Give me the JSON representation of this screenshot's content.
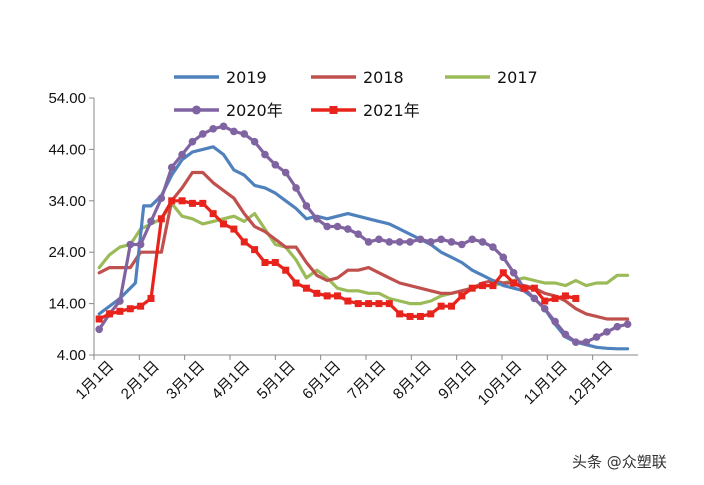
{
  "chart_data": {
    "type": "line",
    "title": "",
    "xlabel": "",
    "ylabel": "",
    "ylim": [
      4,
      54
    ],
    "y_ticks": [
      "54.00",
      "44.00",
      "34.00",
      "24.00",
      "14.00",
      "4.00"
    ],
    "y_tick_values": [
      54,
      44,
      34,
      24,
      14,
      4
    ],
    "x_ticks": [
      "1月1日",
      "2月1日",
      "3月1日",
      "4月1日",
      "5月1日",
      "6月1日",
      "7月1日",
      "8月1日",
      "9月1日",
      "10月1日",
      "11月1日",
      "12月1日"
    ],
    "xlim": [
      -0.5,
      52.0
    ],
    "grid": false,
    "legend_placement": "top",
    "series": [
      {
        "name": "2019",
        "color": "#4f81bd",
        "marker": "none",
        "x": [
          0,
          2,
          3.5,
          4.3,
          5,
          6,
          7,
          8,
          9,
          10,
          11,
          12,
          13,
          14,
          15,
          16,
          17,
          18,
          19,
          20,
          21,
          22,
          23,
          24,
          25,
          26,
          27,
          28,
          29,
          30,
          31,
          32,
          33,
          34,
          35,
          36,
          37,
          38,
          39,
          40,
          41,
          42,
          43,
          44,
          45,
          46,
          47,
          48,
          49,
          50,
          51
        ],
        "y": [
          12,
          15,
          18,
          33,
          33,
          35,
          39,
          42,
          43.5,
          44,
          44.5,
          43,
          40,
          39,
          37,
          36.5,
          35.5,
          34,
          32.5,
          30.5,
          31,
          30.5,
          31,
          31.5,
          31,
          30.5,
          30,
          29.5,
          28.5,
          27.5,
          26.5,
          25.5,
          24,
          23,
          22,
          20.5,
          19.5,
          18.5,
          17.5,
          17,
          16.5,
          15,
          13,
          10,
          7.5,
          6.5,
          6,
          5.5,
          5.3,
          5.2,
          5.2
        ]
      },
      {
        "name": "2018",
        "color": "#c0504d",
        "marker": "none",
        "x": [
          0,
          1,
          2,
          3,
          4,
          5,
          6,
          7,
          8,
          9,
          10,
          11,
          12,
          13,
          14,
          15,
          16,
          17,
          18,
          19,
          20,
          21,
          22,
          23,
          24,
          25,
          26,
          27,
          28,
          29,
          30,
          31,
          32,
          33,
          34,
          35,
          36,
          37,
          38,
          39,
          40,
          41,
          42,
          43,
          44,
          45,
          46,
          47,
          48,
          49,
          50,
          51
        ],
        "y": [
          20,
          21,
          21,
          21,
          24,
          24,
          24,
          34,
          36.5,
          39.5,
          39.5,
          37.5,
          36,
          34.5,
          31.5,
          29,
          28,
          26.5,
          25,
          25,
          22,
          19.5,
          18.5,
          19,
          20.5,
          20.5,
          21,
          20,
          19,
          18,
          17.5,
          17,
          16.5,
          16,
          16,
          16.5,
          17,
          18,
          18.5,
          18,
          18,
          17.5,
          17,
          16,
          15.5,
          14.5,
          13,
          12,
          11.5,
          11,
          11,
          11
        ]
      },
      {
        "name": "2017",
        "color": "#9bbb59",
        "marker": "none",
        "x": [
          0,
          1,
          2,
          3,
          4,
          5,
          6,
          7,
          8,
          9,
          10,
          11,
          12,
          13,
          14,
          15,
          16,
          17,
          18,
          19,
          20,
          21,
          22,
          23,
          24,
          25,
          26,
          27,
          28,
          29,
          30,
          31,
          32,
          33,
          34,
          35,
          36,
          37,
          38,
          39,
          40,
          41,
          42,
          43,
          44,
          45,
          46,
          47,
          48,
          49,
          50,
          51
        ],
        "y": [
          21,
          23.5,
          25,
          25.5,
          28.5,
          29.5,
          30.5,
          33.5,
          31,
          30.5,
          29.5,
          30,
          30.5,
          31,
          30,
          31.5,
          28.5,
          25.5,
          25,
          22.5,
          19,
          20.5,
          19,
          17,
          16.5,
          16.5,
          16,
          16,
          15,
          14.5,
          14,
          14,
          14.5,
          15.5,
          16,
          16.5,
          17,
          17.5,
          17.5,
          18,
          18.5,
          19,
          18.5,
          18,
          18,
          17.5,
          18.5,
          17.5,
          18,
          18,
          19.5,
          19.5
        ]
      },
      {
        "name": "2020年",
        "color": "#8064a2",
        "marker": "circle",
        "x": [
          0,
          1,
          2,
          3,
          4,
          5,
          6,
          7,
          8,
          9,
          10,
          11,
          12,
          13,
          14,
          15,
          16,
          17,
          18,
          19,
          20,
          21,
          22,
          23,
          24,
          25,
          26,
          27,
          28,
          29,
          30,
          31,
          32,
          33,
          34,
          35,
          36,
          37,
          38,
          39,
          40,
          41,
          42,
          43,
          44,
          45,
          46,
          47,
          48,
          49,
          50,
          51
        ],
        "y": [
          9,
          12,
          14.5,
          25.5,
          25.5,
          30,
          34.5,
          40.5,
          43,
          45.5,
          47,
          48,
          48.5,
          47.5,
          47,
          45.5,
          43,
          41,
          39.5,
          36.5,
          33,
          30.5,
          29,
          29,
          28.5,
          27.5,
          26,
          26.5,
          26,
          26,
          26,
          26.5,
          26,
          26.5,
          26,
          25.5,
          26.5,
          26,
          25,
          23,
          20,
          17,
          15,
          13,
          10.5,
          8,
          6.5,
          6.5,
          7.5,
          8.5,
          9.5,
          10
        ]
      },
      {
        "name": "2021年",
        "color": "#e8231c",
        "marker": "square",
        "x": [
          0,
          1,
          2,
          3,
          4,
          5,
          6,
          7,
          8,
          9,
          10,
          11,
          12,
          13,
          14,
          15,
          16,
          17,
          18,
          19,
          20,
          21,
          22,
          23,
          24,
          25,
          26,
          27,
          28,
          29,
          30,
          31,
          32,
          33,
          34,
          35,
          36,
          37,
          38,
          39,
          40,
          41,
          42,
          43,
          44,
          45,
          46
        ],
        "y": [
          11,
          12,
          12.5,
          13,
          13.5,
          15,
          30.5,
          34,
          34,
          33.5,
          33.5,
          31.5,
          29.5,
          28.5,
          26,
          24.5,
          22,
          22,
          20.5,
          18,
          17,
          16,
          15.5,
          15.5,
          14.5,
          14,
          14,
          14,
          14,
          12,
          11.5,
          11.5,
          12,
          13.5,
          13.5,
          15.5,
          17,
          17.5,
          17.5,
          20,
          18,
          17,
          17,
          14.5,
          15,
          15.5,
          15
        ]
      }
    ]
  },
  "watermark": "头条 @众塑联"
}
